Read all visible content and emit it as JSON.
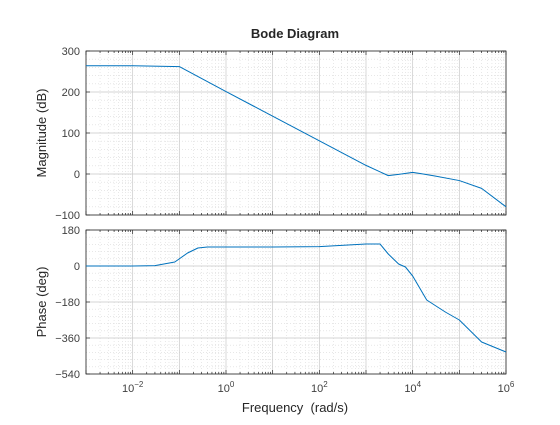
{
  "chart_data": [
    {
      "type": "line",
      "panel": "magnitude",
      "title": "Bode Diagram",
      "ylabel": "Magnitude (dB)",
      "xlabel": "",
      "xscale": "log",
      "xlim": [
        0.001,
        1000000
      ],
      "ylim": [
        -100,
        300
      ],
      "yticks": [
        -100,
        0,
        100,
        200,
        300
      ],
      "yticklabels": [
        "−100",
        "0",
        "100",
        "200",
        "300"
      ],
      "grid": true,
      "series": [
        {
          "color": "#0072BD",
          "x": [
            0.001,
            0.01,
            0.1,
            1,
            10,
            100,
            1000,
            3000,
            5000,
            10000,
            15000,
            30000,
            100000,
            300000,
            1000000
          ],
          "y": [
            264,
            264,
            262,
            201,
            141,
            81,
            21,
            -4,
            -1,
            4,
            1,
            -5,
            -16,
            -35,
            -80
          ]
        }
      ]
    },
    {
      "type": "line",
      "panel": "phase",
      "xlabel": "Frequency  (rad/s)",
      "ylabel": "Phase (deg)",
      "xscale": "log",
      "xlim": [
        0.001,
        1000000
      ],
      "ylim": [
        -540,
        180
      ],
      "xticklabels": [
        {
          "base": "10",
          "exp": "-2",
          "value": 0.01
        },
        {
          "base": "10",
          "exp": "0",
          "value": 1
        },
        {
          "base": "10",
          "exp": "2",
          "value": 100
        },
        {
          "base": "10",
          "exp": "4",
          "value": 10000
        },
        {
          "base": "10",
          "exp": "6",
          "value": 1000000
        }
      ],
      "yticks": [
        -540,
        -360,
        -180,
        0,
        180
      ],
      "yticklabels": [
        "−540",
        "−360",
        "−180",
        "0",
        "180"
      ],
      "grid": true,
      "series": [
        {
          "color": "#0072BD",
          "x": [
            0.001,
            0.01,
            0.03,
            0.08,
            0.15,
            0.25,
            0.4,
            1,
            10,
            100,
            1000,
            2000,
            3000,
            5000,
            7000,
            10000,
            20000,
            50000,
            100000,
            300000,
            1000000
          ],
          "y": [
            0,
            0,
            2,
            20,
            65,
            90,
            95,
            95,
            95,
            97,
            110,
            110,
            60,
            10,
            -5,
            -50,
            -170,
            -230,
            -270,
            -380,
            -430
          ]
        }
      ]
    }
  ]
}
